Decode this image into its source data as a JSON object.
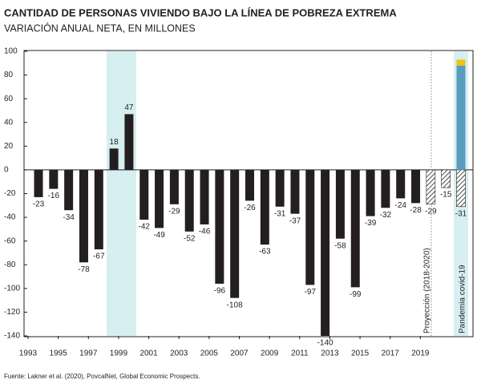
{
  "chart_data": {
    "type": "bar",
    "title": "CANTIDAD DE PERSONAS VIVIENDO BAJO LA LÍNEA DE POBREZA EXTREMA",
    "subtitle": "VARIACIÓN ANUAL NETA, EN MILLONES",
    "source": "Fuente: Lakner et al. (2020), PovcalNet, Global Economic Prospects.",
    "annotations": [
      "Proyección (2018-2020)",
      "Pandemia covid-19"
    ],
    "categories": [
      "1993",
      null,
      "1995",
      null,
      "1997",
      null,
      "1999",
      null,
      "2001",
      null,
      "2003",
      null,
      "2005",
      null,
      "2007",
      null,
      "2009",
      null,
      "2011",
      null,
      "2013",
      null,
      "2015",
      null,
      "2017",
      null,
      "2019",
      null,
      null
    ],
    "series": [
      {
        "color": "#231f20",
        "values": [
          -23,
          -16,
          -34,
          -78,
          -67,
          18,
          47,
          -42,
          -49,
          -29,
          -52,
          -46,
          -96,
          -108,
          -26,
          -63,
          -31,
          -37,
          -97,
          -140,
          -58,
          -99,
          -39,
          -32,
          -24,
          -28,
          -29,
          -15,
          -31
        ],
        "hatched": [
          false,
          false,
          false,
          false,
          false,
          false,
          false,
          false,
          false,
          false,
          false,
          false,
          false,
          false,
          false,
          false,
          false,
          false,
          false,
          false,
          false,
          false,
          false,
          false,
          false,
          false,
          true,
          true,
          true
        ]
      },
      {
        "color": "#5b9bbf",
        "values": [
          null,
          null,
          null,
          null,
          null,
          null,
          null,
          null,
          null,
          null,
          null,
          null,
          null,
          null,
          null,
          null,
          null,
          null,
          null,
          null,
          null,
          null,
          null,
          null,
          null,
          null,
          null,
          null,
          88
        ]
      },
      {
        "color": "#f2c214",
        "values": [
          null,
          null,
          null,
          null,
          null,
          null,
          null,
          null,
          null,
          null,
          null,
          null,
          null,
          null,
          null,
          null,
          null,
          null,
          null,
          null,
          null,
          null,
          null,
          null,
          null,
          null,
          null,
          null,
          5
        ]
      }
    ],
    "ylim": [
      -140,
      100
    ],
    "yticks": [
      100,
      80,
      60,
      40,
      20,
      0,
      -20,
      -40,
      -60,
      -80,
      -100,
      -120,
      -140
    ],
    "grid": false
  }
}
